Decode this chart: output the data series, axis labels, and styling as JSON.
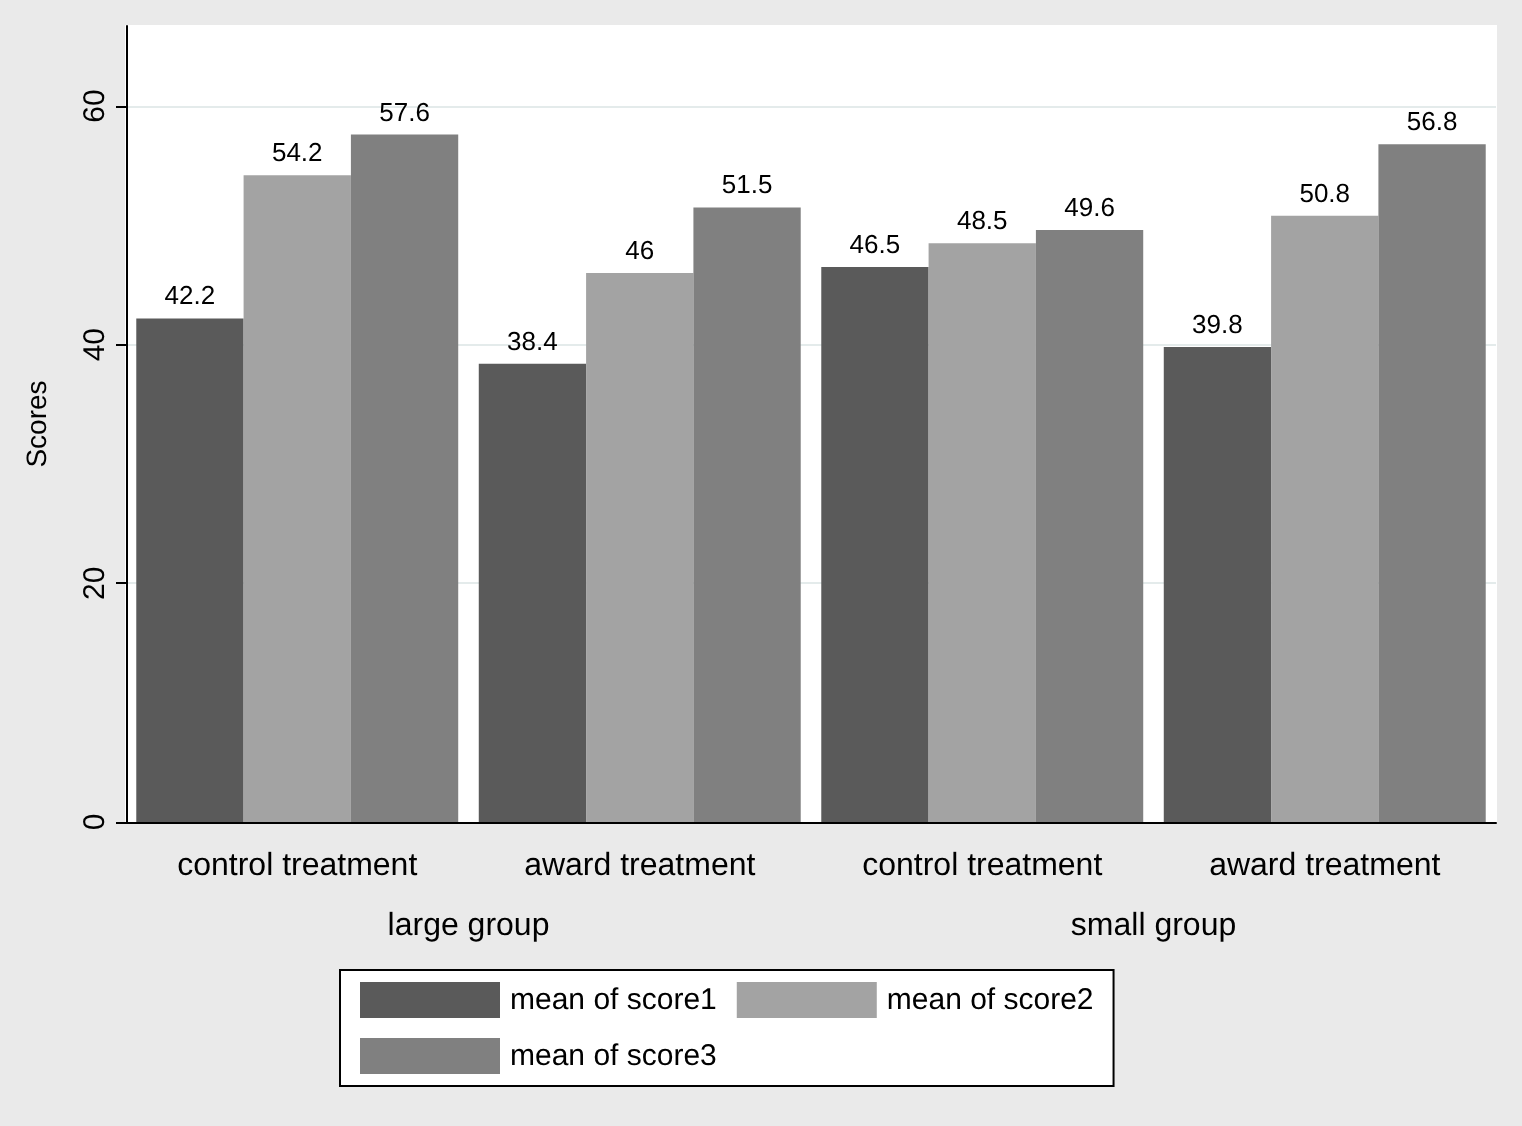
{
  "chart_data": {
    "type": "bar",
    "ylabel": "Scores",
    "categories": [
      "control treatment",
      "award treatment",
      "control treatment",
      "award treatment"
    ],
    "series": [
      {
        "name": "mean of score1",
        "color": "#5a5a5a",
        "values": [
          42.2,
          38.4,
          46.5,
          39.8
        ]
      },
      {
        "name": "mean of score2",
        "color": "#a3a3a3",
        "values": [
          54.2,
          46,
          48.5,
          50.8
        ]
      },
      {
        "name": "mean of score3",
        "color": "#808080",
        "values": [
          57.6,
          51.5,
          49.6,
          56.8
        ]
      }
    ],
    "annotations": [
      "large group",
      "small group"
    ],
    "ylim": [
      0,
      66.7
    ],
    "yticks": [
      0,
      20,
      40,
      60
    ],
    "grid": "y",
    "legend": "bottom",
    "data_labels": true
  }
}
